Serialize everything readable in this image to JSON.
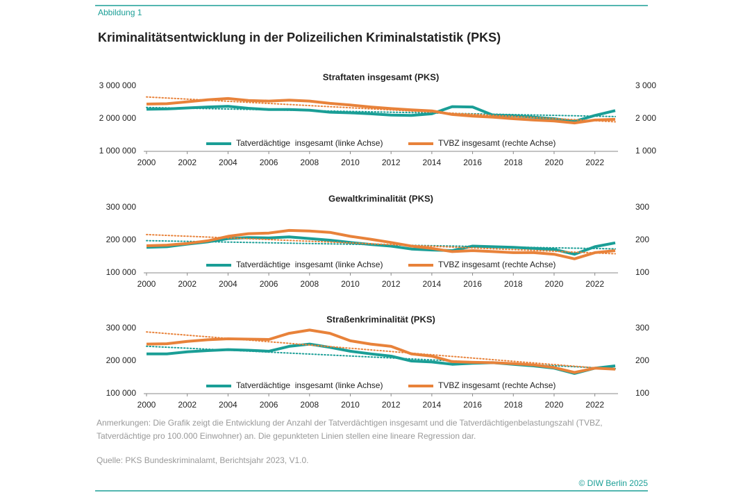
{
  "figure_label": "Abbildung 1",
  "title": "Kriminalitätsentwicklung in der Polizeilichen Kriminalstatistik (PKS)",
  "chart_data": [
    {
      "type": "line",
      "title": "Straftaten insgesamt (PKS)",
      "x": [
        2000,
        2001,
        2002,
        2003,
        2004,
        2005,
        2006,
        2007,
        2008,
        2009,
        2010,
        2011,
        2012,
        2013,
        2014,
        2015,
        2016,
        2017,
        2018,
        2019,
        2020,
        2021,
        2022,
        2023
      ],
      "xlim": [
        2000,
        2023
      ],
      "xticks": [
        2000,
        2002,
        2004,
        2006,
        2008,
        2010,
        2012,
        2014,
        2016,
        2018,
        2020,
        2022
      ],
      "ylim": [
        1000000,
        3000000
      ],
      "yticks": [
        {
          "value": 1000000,
          "label": "1 000 000"
        },
        {
          "value": 2000000,
          "label": "2 000 000"
        },
        {
          "value": 3000000,
          "label": "3 000 000"
        }
      ],
      "y2lim": [
        1000,
        3000
      ],
      "y2ticks": [
        {
          "value": 1000,
          "label": "1 000"
        },
        {
          "value": 2000,
          "label": "2 000"
        },
        {
          "value": 3000,
          "label": "3 000"
        }
      ],
      "grid": false,
      "legend": "lower center",
      "series": [
        {
          "name": "Tatverdächtige  insgesamt (linke Achse)",
          "color": "#1a9e96",
          "trendline": true,
          "values": [
            2290000,
            2300000,
            2330000,
            2360000,
            2380000,
            2320000,
            2280000,
            2280000,
            2260000,
            2200000,
            2180000,
            2150000,
            2110000,
            2100000,
            2150000,
            2370000,
            2360000,
            2110000,
            2090000,
            2050000,
            2000000,
            1920000,
            2100000,
            2250000
          ]
        },
        {
          "name": "TVBZ insgesamt (rechte Achse)",
          "color": "#e8823a",
          "axis": "y2",
          "trendline": true,
          "values": [
            2450,
            2460,
            2520,
            2580,
            2620,
            2560,
            2540,
            2570,
            2540,
            2470,
            2420,
            2360,
            2310,
            2270,
            2240,
            2130,
            2080,
            2050,
            2000,
            1960,
            1930,
            1870,
            1960,
            1980
          ]
        }
      ]
    },
    {
      "type": "line",
      "title": "Gewaltkriminalität (PKS)",
      "x": [
        2000,
        2001,
        2002,
        2003,
        2004,
        2005,
        2006,
        2007,
        2008,
        2009,
        2010,
        2011,
        2012,
        2013,
        2014,
        2015,
        2016,
        2017,
        2018,
        2019,
        2020,
        2021,
        2022,
        2023
      ],
      "xlim": [
        2000,
        2023
      ],
      "xticks": [
        2000,
        2002,
        2004,
        2006,
        2008,
        2010,
        2012,
        2014,
        2016,
        2018,
        2020,
        2022
      ],
      "ylim": [
        100000,
        300000
      ],
      "yticks": [
        {
          "value": 100000,
          "label": "100 000"
        },
        {
          "value": 200000,
          "label": "200 000"
        },
        {
          "value": 300000,
          "label": "300 000"
        }
      ],
      "y2lim": [
        100,
        300
      ],
      "y2ticks": [
        100,
        200,
        300
      ],
      "grid": false,
      "legend": "lower center",
      "series": [
        {
          "name": "Tatverdächtige  insgesamt (linke Achse)",
          "color": "#1a9e96",
          "trendline": true,
          "values": [
            178000,
            180000,
            188000,
            195000,
            205000,
            208000,
            207000,
            210000,
            205000,
            200000,
            193000,
            187000,
            182000,
            173000,
            170000,
            168000,
            182000,
            180000,
            178000,
            175000,
            172000,
            157000,
            180000,
            192000
          ]
        },
        {
          "name": "TVBZ insgesamt (rechte Achse)",
          "color": "#e8823a",
          "axis": "y2",
          "trendline": true,
          "values": [
            183,
            185,
            190,
            198,
            212,
            220,
            222,
            230,
            228,
            224,
            212,
            203,
            193,
            182,
            175,
            165,
            168,
            165,
            162,
            162,
            157,
            143,
            162,
            168
          ]
        }
      ]
    },
    {
      "type": "line",
      "title": "Straßenkriminalität (PKS)",
      "x": [
        2000,
        2001,
        2002,
        2003,
        2004,
        2005,
        2006,
        2007,
        2008,
        2009,
        2010,
        2011,
        2012,
        2013,
        2014,
        2015,
        2016,
        2017,
        2018,
        2019,
        2020,
        2021,
        2022,
        2023
      ],
      "xlim": [
        2000,
        2023
      ],
      "xticks": [
        2000,
        2002,
        2004,
        2006,
        2008,
        2010,
        2012,
        2014,
        2016,
        2018,
        2020,
        2022
      ],
      "ylim": [
        100000,
        300000
      ],
      "yticks": [
        {
          "value": 100000,
          "label": "100 000"
        },
        {
          "value": 200000,
          "label": "200 000"
        },
        {
          "value": 300000,
          "label": "300 000"
        }
      ],
      "y2lim": [
        100,
        300
      ],
      "y2ticks": [
        100,
        200,
        300
      ],
      "grid": false,
      "legend": "lower center",
      "series": [
        {
          "name": "Tatverdächtige  insgesamt (linke Achse)",
          "color": "#1a9e96",
          "trendline": true,
          "values": [
            222000,
            222000,
            228000,
            232000,
            235000,
            233000,
            230000,
            245000,
            252000,
            242000,
            230000,
            222000,
            215000,
            200000,
            197000,
            190000,
            193000,
            195000,
            190000,
            185000,
            178000,
            162000,
            178000,
            185000
          ]
        },
        {
          "name": "TVBZ insgesamt (rechte Achse)",
          "color": "#e8823a",
          "axis": "y2",
          "trendline": true,
          "values": [
            252,
            253,
            260,
            265,
            268,
            267,
            266,
            285,
            295,
            285,
            262,
            252,
            245,
            222,
            215,
            198,
            196,
            195,
            192,
            188,
            180,
            165,
            178,
            175
          ]
        }
      ]
    }
  ],
  "notes": "Anmerkungen: Die Grafik zeigt die Entwicklung der Anzahl der Tatverdächtigen insgesamt und die Tatverdächtigenbelastungszahl (TVBZ, Tatverdächtige pro 100.000 Einwohner) an. Die gepunkteten Linien stellen eine lineare Regression dar.",
  "source": "Quelle: PKS Bundeskriminalamt, Berichtsjahr 2023, V1.0.",
  "copyright": "© DIW Berlin 2025"
}
